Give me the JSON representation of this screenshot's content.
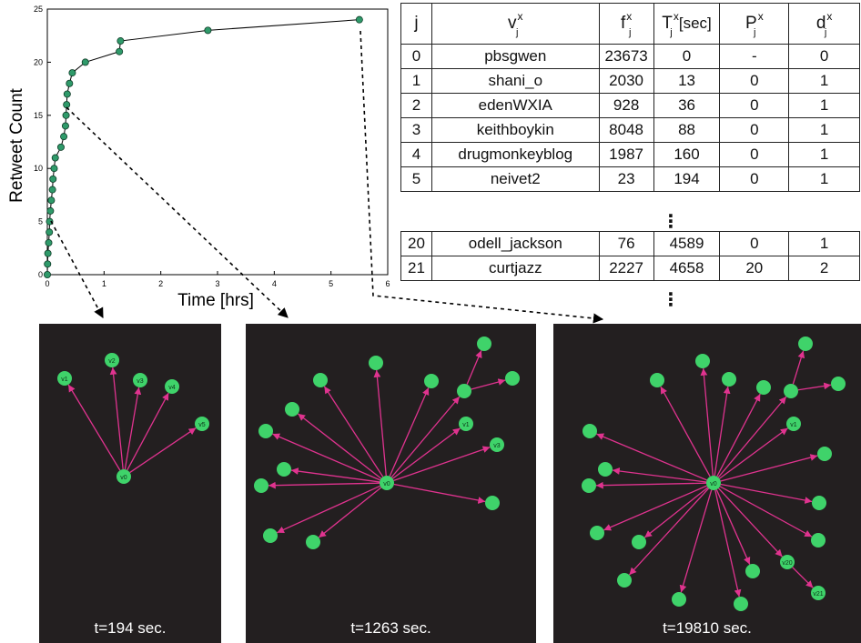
{
  "chart_data": {
    "type": "line",
    "xlabel": "Time [hrs]",
    "ylabel": "Retweet Count",
    "xlim": [
      0,
      6
    ],
    "ylim": [
      0,
      25
    ],
    "x_ticks": [
      0,
      1,
      2,
      3,
      4,
      5,
      6
    ],
    "y_ticks": [
      0,
      5,
      10,
      15,
      20,
      25
    ],
    "series": [
      {
        "x": [
          0,
          0.004,
          0.01,
          0.024,
          0.035,
          0.04,
          0.054,
          0.07,
          0.09,
          0.1,
          0.12,
          0.14,
          0.24,
          0.29,
          0.32,
          0.33,
          0.34,
          0.35,
          0.39,
          0.44,
          0.67,
          1.27,
          1.29,
          2.83,
          5.5
        ],
        "y": [
          0,
          1,
          2,
          3,
          4,
          5,
          6,
          7,
          8,
          9,
          10,
          11,
          12,
          13,
          14,
          15,
          16,
          17,
          18,
          19,
          20,
          21,
          22,
          23,
          24
        ],
        "marker": "circle",
        "color": "#2f9a6a"
      }
    ]
  },
  "table": {
    "headers": [
      {
        "main": "j",
        "sup": "",
        "sub": "",
        "tail": ""
      },
      {
        "main": "v",
        "sup": "x",
        "sub": "j",
        "tail": ""
      },
      {
        "main": "f",
        "sup": "x",
        "sub": "j",
        "tail": ""
      },
      {
        "main": "T",
        "sup": "x",
        "sub": "j",
        "tail": "[sec]"
      },
      {
        "main": "P",
        "sup": "x",
        "sub": "j",
        "tail": ""
      },
      {
        "main": "d",
        "sup": "x",
        "sub": "j",
        "tail": ""
      }
    ],
    "top_rows": [
      [
        "0",
        "pbsgwen",
        "23673",
        "0",
        "-",
        "0"
      ],
      [
        "1",
        "shani_o",
        "2030",
        "13",
        "0",
        "1"
      ],
      [
        "2",
        "edenWXIA",
        "928",
        "36",
        "0",
        "1"
      ],
      [
        "3",
        "keithboykin",
        "8048",
        "88",
        "0",
        "1"
      ],
      [
        "4",
        "drugmonkeyblog",
        "1987",
        "160",
        "0",
        "1"
      ],
      [
        "5",
        "neivet2",
        "23",
        "194",
        "0",
        "1"
      ]
    ],
    "bottom_rows": [
      [
        "20",
        "odell_jackson",
        "76",
        "4589",
        "0",
        "1"
      ],
      [
        "21",
        "curtjazz",
        "2227",
        "4658",
        "20",
        "2"
      ]
    ],
    "ellipsis": "⋮"
  },
  "panels": [
    {
      "caption": "t=194 sec.",
      "node_color": "#3fd36a",
      "edge_color": "#e0338f"
    },
    {
      "caption": "t=1263 sec.",
      "node_color": "#3fd36a",
      "edge_color": "#e0338f"
    },
    {
      "caption": "t=19810 sec.",
      "node_color": "#3fd36a",
      "edge_color": "#e0338f"
    }
  ],
  "node_labels": {
    "root": "v0",
    "v1": "v1",
    "v2": "v2",
    "v3": "v3",
    "v4": "v4",
    "v5": "v5",
    "v20": "v20",
    "v21": "v21"
  }
}
